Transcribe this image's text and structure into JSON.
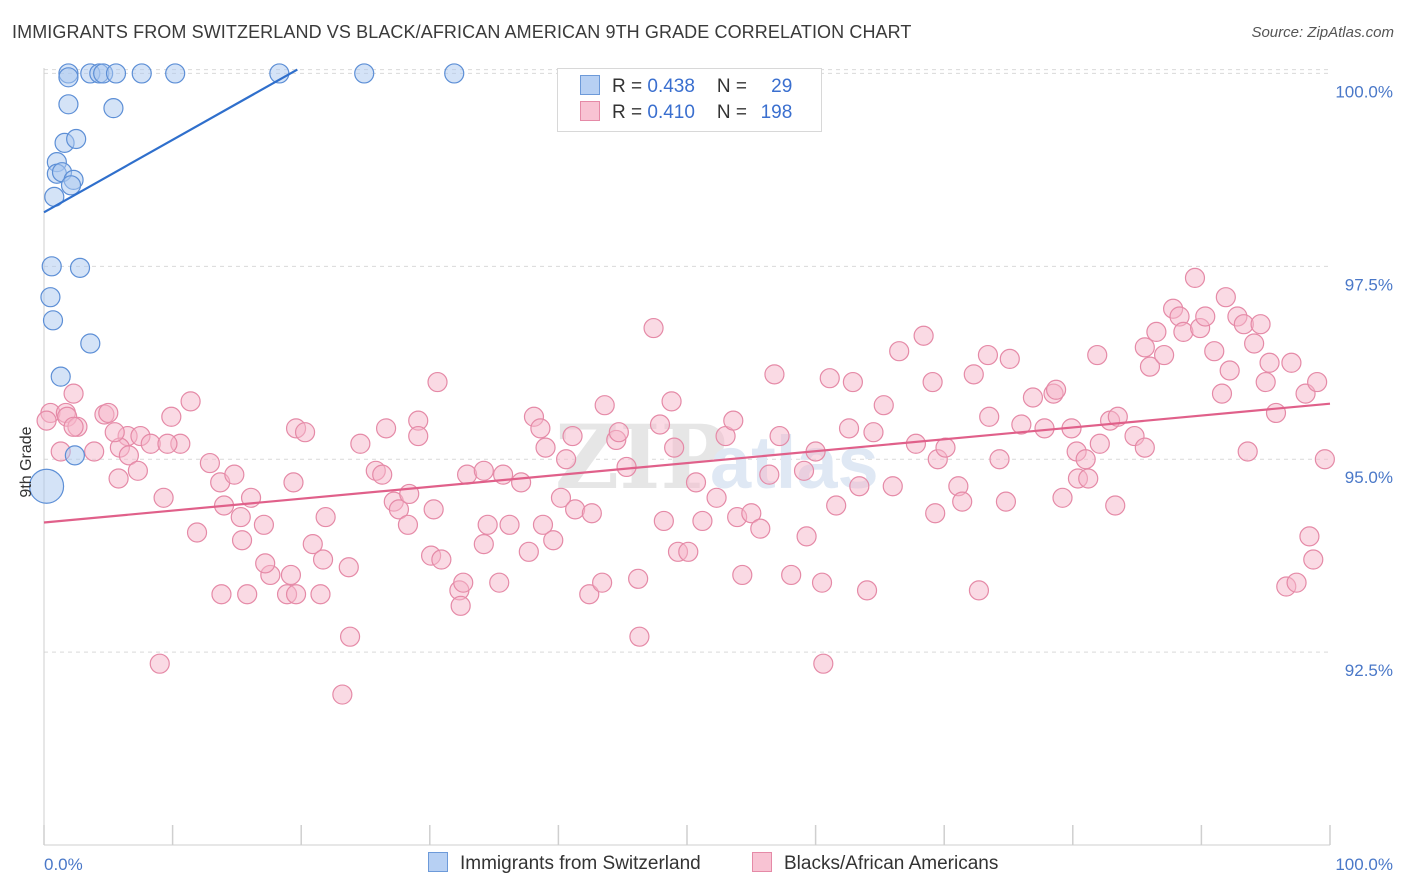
{
  "header": {
    "title": "IMMIGRANTS FROM SWITZERLAND VS BLACK/AFRICAN AMERICAN 9TH GRADE CORRELATION CHART",
    "source": "Source: ZipAtlas.com"
  },
  "legend": {
    "rows": [
      {
        "r_label": "R = ",
        "r_value": "0.438",
        "n_label": "N = ",
        "n_value": "29"
      },
      {
        "r_label": "R = ",
        "r_value": "0.410",
        "n_label": "N = ",
        "n_value": "198"
      }
    ]
  },
  "bottom_legend": {
    "swiss": "Immigrants from Switzerland",
    "black": "Blacks/African Americans"
  },
  "colors": {
    "swiss_fill": "#a9c8f0",
    "swiss_stroke": "#5d8fd6",
    "swiss_line": "#2f6fcc",
    "black_fill": "#f6b6c9",
    "black_stroke": "#e58aa7",
    "black_line": "#e0608a",
    "tick_text": "#4a78c8",
    "grid": "#d9d9d9"
  },
  "chart_data": {
    "type": "scatter",
    "title": "IMMIGRANTS FROM SWITZERLAND VS BLACK/AFRICAN AMERICAN 9TH GRADE CORRELATION CHART",
    "xlabel": "",
    "ylabel": "9th Grade",
    "xlim": [
      0,
      100
    ],
    "ylim": [
      90.0,
      100.2
    ],
    "x_tick_labels": [
      "0.0%",
      "100.0%"
    ],
    "y_ticks": [
      92.5,
      95.0,
      97.5,
      100.0
    ],
    "y_tick_labels": [
      "92.5%",
      "95.0%",
      "97.5%",
      "100.0%"
    ],
    "grid": true,
    "legend_position": "top-center",
    "series": [
      {
        "name": "Immigrants from Switzerland",
        "R": 0.438,
        "N": 29,
        "trend": {
          "x0": 0,
          "y0": 98.2,
          "x1": 19.7,
          "y1": 100.05
        },
        "points": [
          [
            1.9,
            100.0
          ],
          [
            3.6,
            100.0
          ],
          [
            4.3,
            100.0
          ],
          [
            4.6,
            100.0
          ],
          [
            5.6,
            100.0
          ],
          [
            7.6,
            100.0
          ],
          [
            10.2,
            100.0
          ],
          [
            18.3,
            100.0
          ],
          [
            24.9,
            100.0
          ],
          [
            31.9,
            100.0
          ],
          [
            1.9,
            99.95
          ],
          [
            1.9,
            99.6
          ],
          [
            5.4,
            99.55
          ],
          [
            1.6,
            99.1
          ],
          [
            2.5,
            99.15
          ],
          [
            1.0,
            98.85
          ],
          [
            1.0,
            98.7
          ],
          [
            1.4,
            98.72
          ],
          [
            2.3,
            98.62
          ],
          [
            2.1,
            98.55
          ],
          [
            0.8,
            98.4
          ],
          [
            0.6,
            97.5
          ],
          [
            2.8,
            97.48
          ],
          [
            0.5,
            97.1
          ],
          [
            0.7,
            96.8
          ],
          [
            3.6,
            96.5
          ],
          [
            1.3,
            96.07
          ],
          [
            2.4,
            95.05
          ],
          [
            0.2,
            94.65
          ]
        ]
      },
      {
        "name": "Blacks/African Americans",
        "R": 0.41,
        "N": 198,
        "trend": {
          "x0": 0,
          "y0": 94.18,
          "x1": 100,
          "y1": 95.72
        },
        "points": [
          [
            0.5,
            95.6
          ],
          [
            1.7,
            95.6
          ],
          [
            1.8,
            95.55
          ],
          [
            2.6,
            95.42
          ],
          [
            4.7,
            95.58
          ],
          [
            5.0,
            95.6
          ],
          [
            0.2,
            95.5
          ],
          [
            6.5,
            95.3
          ],
          [
            7.5,
            95.3
          ],
          [
            8.3,
            95.2
          ],
          [
            9.9,
            95.55
          ],
          [
            10.6,
            95.2
          ],
          [
            11.4,
            95.75
          ],
          [
            1.3,
            95.1
          ],
          [
            2.3,
            95.42
          ],
          [
            3.9,
            95.1
          ],
          [
            5.9,
            95.15
          ],
          [
            6.6,
            95.05
          ],
          [
            5.5,
            95.35
          ],
          [
            7.3,
            94.85
          ],
          [
            9.6,
            95.2
          ],
          [
            2.3,
            95.85
          ],
          [
            5.8,
            94.75
          ],
          [
            9.3,
            94.5
          ],
          [
            12.9,
            94.95
          ],
          [
            13.7,
            94.7
          ],
          [
            14.8,
            94.8
          ],
          [
            16.1,
            94.5
          ],
          [
            14.0,
            94.4
          ],
          [
            15.3,
            94.25
          ],
          [
            17.1,
            94.15
          ],
          [
            19.4,
            94.7
          ],
          [
            21.9,
            94.25
          ],
          [
            11.9,
            94.05
          ],
          [
            15.4,
            93.95
          ],
          [
            17.6,
            93.5
          ],
          [
            17.2,
            93.65
          ],
          [
            19.2,
            93.5
          ],
          [
            20.9,
            93.9
          ],
          [
            21.7,
            93.7
          ],
          [
            23.7,
            93.6
          ],
          [
            13.8,
            93.25
          ],
          [
            15.8,
            93.25
          ],
          [
            18.9,
            93.25
          ],
          [
            19.6,
            93.25
          ],
          [
            21.5,
            93.25
          ],
          [
            9.0,
            92.35
          ],
          [
            23.8,
            92.7
          ],
          [
            23.2,
            91.95
          ],
          [
            19.6,
            95.4
          ],
          [
            20.3,
            95.35
          ],
          [
            24.6,
            95.2
          ],
          [
            26.6,
            95.4
          ],
          [
            25.8,
            94.85
          ],
          [
            26.3,
            94.8
          ],
          [
            27.2,
            94.45
          ],
          [
            27.6,
            94.35
          ],
          [
            28.3,
            94.15
          ],
          [
            28.4,
            94.55
          ],
          [
            29.1,
            95.5
          ],
          [
            29.1,
            95.3
          ],
          [
            30.3,
            94.35
          ],
          [
            30.1,
            93.75
          ],
          [
            30.9,
            93.7
          ],
          [
            30.6,
            96.0
          ],
          [
            32.3,
            93.3
          ],
          [
            32.4,
            93.1
          ],
          [
            32.9,
            94.8
          ],
          [
            32.6,
            93.4
          ],
          [
            34.2,
            94.85
          ],
          [
            34.2,
            93.9
          ],
          [
            34.5,
            94.15
          ],
          [
            35.4,
            93.4
          ],
          [
            35.7,
            94.8
          ],
          [
            36.2,
            94.15
          ],
          [
            37.1,
            94.7
          ],
          [
            37.7,
            93.8
          ],
          [
            38.1,
            95.55
          ],
          [
            38.6,
            95.4
          ],
          [
            39.0,
            95.15
          ],
          [
            38.8,
            94.15
          ],
          [
            39.6,
            93.95
          ],
          [
            40.2,
            94.5
          ],
          [
            40.6,
            95.0
          ],
          [
            41.1,
            95.3
          ],
          [
            41.3,
            94.35
          ],
          [
            42.4,
            93.25
          ],
          [
            42.6,
            94.3
          ],
          [
            43.4,
            93.4
          ],
          [
            43.6,
            95.7
          ],
          [
            44.5,
            95.25
          ],
          [
            44.7,
            95.35
          ],
          [
            45.3,
            94.9
          ],
          [
            46.2,
            93.45
          ],
          [
            46.3,
            92.7
          ],
          [
            47.9,
            95.45
          ],
          [
            48.2,
            94.2
          ],
          [
            47.4,
            96.7
          ],
          [
            48.8,
            95.75
          ],
          [
            49.0,
            95.15
          ],
          [
            49.3,
            93.8
          ],
          [
            50.1,
            93.8
          ],
          [
            50.7,
            94.7
          ],
          [
            51.2,
            94.2
          ],
          [
            52.3,
            94.5
          ],
          [
            53.0,
            95.3
          ],
          [
            53.6,
            95.5
          ],
          [
            53.9,
            94.25
          ],
          [
            55.0,
            94.3
          ],
          [
            54.3,
            93.5
          ],
          [
            55.7,
            94.1
          ],
          [
            56.4,
            94.8
          ],
          [
            56.8,
            96.1
          ],
          [
            57.2,
            95.3
          ],
          [
            58.1,
            93.5
          ],
          [
            59.1,
            94.85
          ],
          [
            59.3,
            94.0
          ],
          [
            60.0,
            95.1
          ],
          [
            60.5,
            93.4
          ],
          [
            60.6,
            92.35
          ],
          [
            61.1,
            96.05
          ],
          [
            61.6,
            94.4
          ],
          [
            62.6,
            95.4
          ],
          [
            62.9,
            96.0
          ],
          [
            63.4,
            94.65
          ],
          [
            64.0,
            93.3
          ],
          [
            64.5,
            95.35
          ],
          [
            65.3,
            95.7
          ],
          [
            66.0,
            94.65
          ],
          [
            66.5,
            96.4
          ],
          [
            67.8,
            95.2
          ],
          [
            68.4,
            96.6
          ],
          [
            69.1,
            96.0
          ],
          [
            69.5,
            95.0
          ],
          [
            69.3,
            94.3
          ],
          [
            70.1,
            95.15
          ],
          [
            71.1,
            94.65
          ],
          [
            71.4,
            94.45
          ],
          [
            72.3,
            96.1
          ],
          [
            72.7,
            93.3
          ],
          [
            73.4,
            96.35
          ],
          [
            73.5,
            95.55
          ],
          [
            74.3,
            95.0
          ],
          [
            74.8,
            94.45
          ],
          [
            75.1,
            96.3
          ],
          [
            76.0,
            95.45
          ],
          [
            76.9,
            95.8
          ],
          [
            77.8,
            95.4
          ],
          [
            78.5,
            95.85
          ],
          [
            78.7,
            95.9
          ],
          [
            79.2,
            94.5
          ],
          [
            79.9,
            95.4
          ],
          [
            80.3,
            95.1
          ],
          [
            80.4,
            94.75
          ],
          [
            81.0,
            95.0
          ],
          [
            81.2,
            94.75
          ],
          [
            81.9,
            96.35
          ],
          [
            82.1,
            95.2
          ],
          [
            82.9,
            95.5
          ],
          [
            83.5,
            95.55
          ],
          [
            83.3,
            94.4
          ],
          [
            84.8,
            95.3
          ],
          [
            85.6,
            96.45
          ],
          [
            85.6,
            95.15
          ],
          [
            86.0,
            96.2
          ],
          [
            86.5,
            96.65
          ],
          [
            87.1,
            96.35
          ],
          [
            87.8,
            96.95
          ],
          [
            88.3,
            96.85
          ],
          [
            88.6,
            96.65
          ],
          [
            89.5,
            97.35
          ],
          [
            89.9,
            96.7
          ],
          [
            90.3,
            96.85
          ],
          [
            91.0,
            96.4
          ],
          [
            91.6,
            95.85
          ],
          [
            91.9,
            97.1
          ],
          [
            92.2,
            96.15
          ],
          [
            92.8,
            96.85
          ],
          [
            93.3,
            96.75
          ],
          [
            93.6,
            95.1
          ],
          [
            94.1,
            96.5
          ],
          [
            94.6,
            96.75
          ],
          [
            95.0,
            96.0
          ],
          [
            95.3,
            96.25
          ],
          [
            95.8,
            95.6
          ],
          [
            96.6,
            93.35
          ],
          [
            97.0,
            96.25
          ],
          [
            97.4,
            93.4
          ],
          [
            98.1,
            95.85
          ],
          [
            98.4,
            94.0
          ],
          [
            98.7,
            93.7
          ],
          [
            99.0,
            96.0
          ],
          [
            99.6,
            95.0
          ]
        ]
      }
    ]
  },
  "watermark": {
    "zip": "ZIP",
    "atlas": "atlas"
  }
}
